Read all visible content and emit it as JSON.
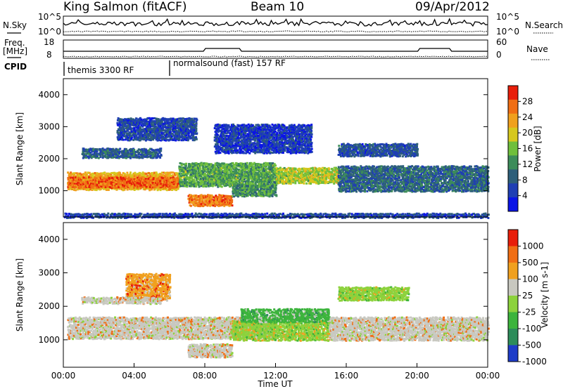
{
  "header": {
    "station": "King Salmon (fitACF)",
    "beam": "Beam 10",
    "date": "09/Apr/2012"
  },
  "noise_panel": {
    "left_label": "N.Sky",
    "right_label": "N.Search",
    "left_ticks": [
      "10^5",
      "10^0"
    ],
    "right_ticks": [
      "10^5",
      "10^0"
    ]
  },
  "freq_panel": {
    "left_label_1": "Freq.",
    "left_label_2": "[MHz]",
    "right_label": "Nave",
    "left_ticks": [
      "18",
      "8"
    ],
    "right_ticks": [
      "60",
      "0"
    ]
  },
  "cpid": {
    "label": "CPID",
    "programs": [
      {
        "name": "themis 3300 RF",
        "start_hour": 0
      },
      {
        "name": "normalsound (fast) 157 RF",
        "start_hour": 6
      }
    ]
  },
  "chart_data": [
    {
      "type": "heatmap",
      "panel": "power",
      "xlabel": "",
      "ylabel": "Slant Range [km]",
      "xlim": [
        0,
        24
      ],
      "ylim": [
        180,
        4500
      ],
      "y_ticks": [
        1000,
        2000,
        3000,
        4000
      ],
      "colorbar": {
        "label": "Power [dB]",
        "range": [
          0,
          32
        ],
        "tick_values": [
          4,
          8,
          12,
          16,
          20,
          24,
          28
        ],
        "tick_labels": [
          "4",
          "8",
          "12",
          "16",
          "20",
          "24",
          "28"
        ],
        "colors": [
          "#0a14e6",
          "#1f3fb4",
          "#2d5f7a",
          "#3c8c5a",
          "#6fbf3c",
          "#d6c81e",
          "#f0a01e",
          "#f06e14",
          "#e81e0a"
        ]
      },
      "bands": [
        {
          "t0": 0.2,
          "t1": 6.5,
          "r0": 1050,
          "r1": 1600,
          "level": 22
        },
        {
          "t0": 0.2,
          "t1": 6.5,
          "r0": 1120,
          "r1": 1450,
          "level": 27
        },
        {
          "t0": 6.5,
          "t1": 12.0,
          "r0": 1150,
          "r1": 1900,
          "level": 14
        },
        {
          "t0": 7.0,
          "t1": 9.5,
          "r0": 550,
          "r1": 900,
          "level": 26
        },
        {
          "t0": 9.5,
          "t1": 12.0,
          "r0": 850,
          "r1": 1200,
          "level": 13
        },
        {
          "t0": 12.0,
          "t1": 15.5,
          "r0": 1250,
          "r1": 1750,
          "level": 18
        },
        {
          "t0": 15.5,
          "t1": 24.0,
          "r0": 1000,
          "r1": 1800,
          "level": 9
        },
        {
          "t0": 1.0,
          "t1": 5.5,
          "r0": 2050,
          "r1": 2350,
          "level": 8
        },
        {
          "t0": 3.0,
          "t1": 7.5,
          "r0": 2600,
          "r1": 3300,
          "level": 6
        },
        {
          "t0": 8.5,
          "t1": 14.0,
          "r0": 2200,
          "r1": 3100,
          "level": 5
        },
        {
          "t0": 15.5,
          "t1": 20.0,
          "r0": 2100,
          "r1": 2500,
          "level": 7
        },
        {
          "t0": 0.0,
          "t1": 24.0,
          "r0": 180,
          "r1": 320,
          "level": 6
        }
      ]
    },
    {
      "type": "heatmap",
      "panel": "velocity",
      "xlabel": "Time UT",
      "ylabel": "Slant Range [km]",
      "xlim": [
        0,
        24
      ],
      "ylim": [
        180,
        4500
      ],
      "x_ticks": [
        0,
        4,
        8,
        12,
        16,
        20,
        24
      ],
      "x_tick_labels": [
        "00:00",
        "04:00",
        "08:00",
        "12:00",
        "16:00",
        "20:00",
        "00:00"
      ],
      "y_ticks": [
        1000,
        2000,
        3000,
        4000
      ],
      "colorbar": {
        "label": "Velocity [m s-1]",
        "tick_labels": [
          "1000",
          "500",
          "100",
          "25",
          "-25",
          "-100",
          "-500",
          "-1000"
        ],
        "colors": [
          "#1e3cc8",
          "#2d8c5a",
          "#3cb43c",
          "#8cd23c",
          "#c8c8c0",
          "#f0a01e",
          "#f06e14",
          "#e81e0a"
        ]
      },
      "bands": [
        {
          "t0": 0.2,
          "t1": 12.0,
          "r0": 1050,
          "r1": 1700,
          "level": 4
        },
        {
          "t0": 7.0,
          "t1": 9.5,
          "r0": 500,
          "r1": 900,
          "level": 4
        },
        {
          "t0": 9.5,
          "t1": 15.0,
          "r0": 1000,
          "r1": 1600,
          "level": 3
        },
        {
          "t0": 10.0,
          "t1": 15.0,
          "r0": 1550,
          "r1": 1950,
          "level": 2
        },
        {
          "t0": 15.0,
          "t1": 24.0,
          "r0": 1000,
          "r1": 1700,
          "level": 4
        },
        {
          "t0": 3.5,
          "t1": 6.0,
          "r0": 2200,
          "r1": 3000,
          "level": 5
        },
        {
          "t0": 1.0,
          "t1": 5.5,
          "r0": 2100,
          "r1": 2300,
          "level": 4
        },
        {
          "t0": 15.5,
          "t1": 19.5,
          "r0": 2200,
          "r1": 2600,
          "level": 3
        }
      ]
    }
  ]
}
